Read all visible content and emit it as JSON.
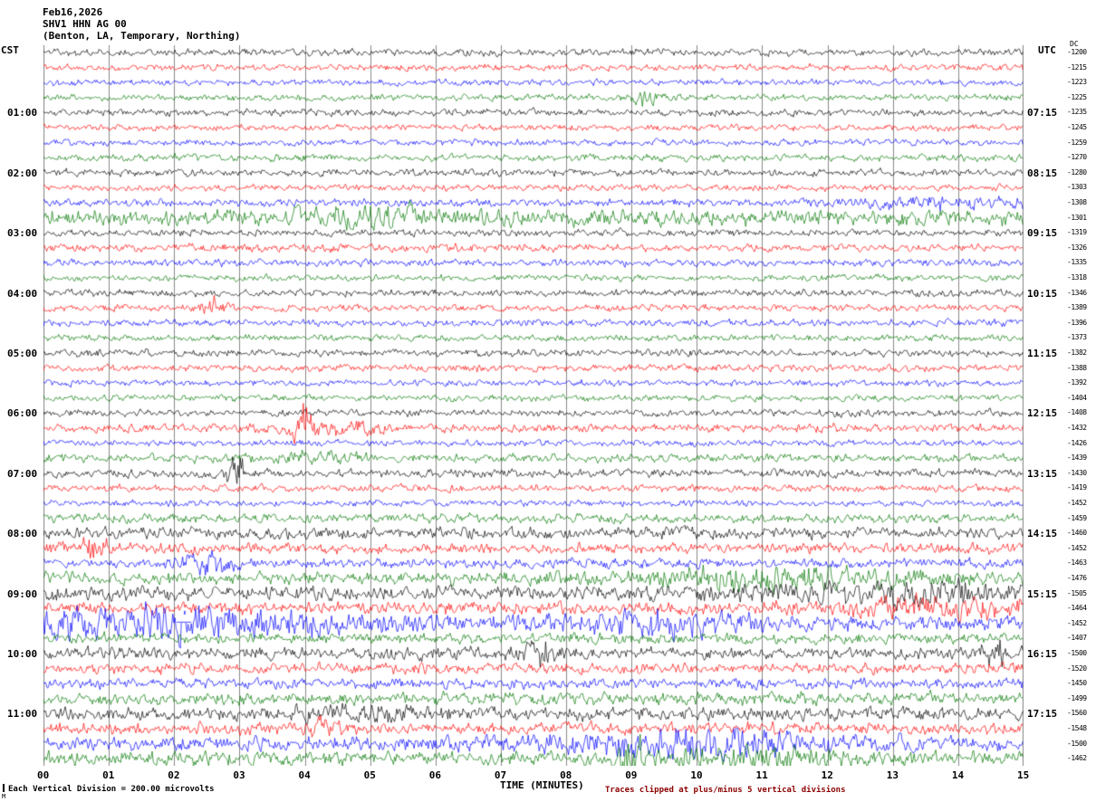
{
  "header": {
    "date": "Feb16,2026",
    "station": "SHV1 HHN AG 00",
    "location": "(Benton, LA, Temporary, Northing)"
  },
  "footer": {
    "scale_note": "Each Vertical Division =  200.00 microvolts",
    "clip_note": "Traces clipped at plus/minus 5 vertical divisions",
    "corner_mark": "M"
  },
  "chart_data": {
    "type": "line",
    "chart_kind": "helicorder-seismogram",
    "title": "SHV1 HHN AG 00",
    "date": "Feb16,2026",
    "location": "(Benton, LA, Temporary, Northing)",
    "xlabel": "TIME (MINUTES)",
    "x_ticks": [
      "00",
      "01",
      "02",
      "03",
      "04",
      "05",
      "06",
      "07",
      "08",
      "09",
      "10",
      "11",
      "12",
      "13",
      "14",
      "15"
    ],
    "x_range_minutes": [
      0,
      15
    ],
    "left_axis_label": "CST",
    "right_axis_label": "UTC",
    "dc_column_label": "DC",
    "left_time_labels": [
      "01:00",
      "02:00",
      "03:00",
      "04:00",
      "05:00",
      "06:00",
      "07:00",
      "08:00",
      "09:00",
      "10:00",
      "11:00"
    ],
    "right_time_labels": [
      "07:15",
      "08:15",
      "09:15",
      "10:15",
      "11:15",
      "12:15",
      "13:15",
      "14:15",
      "15:15",
      "16:15",
      "17:15"
    ],
    "rows": 48,
    "traces_per_hour_group": 4,
    "minutes_per_row": 15,
    "trace_colors": [
      "#000000",
      "#ff0000",
      "#0000ff",
      "#007700"
    ],
    "grid": {
      "vertical_lines_every_minute": true,
      "color": "#8a8a8a"
    },
    "dc_values": [
      -1200,
      -1215,
      -1223,
      -1225,
      -1235,
      -1245,
      -1259,
      -1270,
      -1280,
      -1303,
      -1308,
      -1301,
      -1319,
      -1326,
      -1335,
      -1318,
      -1346,
      -1389,
      -1396,
      -1373,
      -1382,
      -1388,
      -1392,
      -1404,
      -1408,
      -1432,
      -1426,
      -1439,
      -1430,
      -1419,
      -1452,
      -1459,
      -1460,
      -1452,
      -1463,
      -1476,
      -1505,
      -1464,
      -1452,
      -1407,
      -1500,
      -1520,
      -1450,
      -1499,
      -1560,
      -1548,
      -1500,
      -1462
    ],
    "row_relative_amplitudes": [
      1.0,
      0.9,
      0.9,
      0.9,
      1.0,
      0.9,
      0.9,
      1.0,
      1.0,
      0.9,
      1.1,
      2.2,
      1.0,
      1.1,
      1.0,
      0.9,
      1.0,
      1.0,
      1.0,
      0.9,
      1.0,
      1.0,
      0.9,
      0.9,
      1.0,
      1.2,
      0.9,
      1.2,
      1.2,
      1.0,
      0.9,
      1.3,
      1.6,
      1.5,
      1.4,
      1.8,
      2.0,
      1.8,
      2.2,
      1.5,
      1.7,
      1.5,
      1.5,
      1.7,
      1.8,
      1.7,
      2.0,
      1.9
    ],
    "events": [
      {
        "row": 3,
        "minute": 9.2,
        "amp": 2.5,
        "width": 0.15
      },
      {
        "row": 10,
        "minute": 13.8,
        "amp": 1.0,
        "width": 0.9
      },
      {
        "row": 11,
        "minute": 5.0,
        "amp": 0.8,
        "width": 0.8
      },
      {
        "row": 17,
        "minute": 2.6,
        "amp": 2.5,
        "width": 0.12
      },
      {
        "row": 25,
        "minute": 3.95,
        "amp": 5.0,
        "width": 0.1
      },
      {
        "row": 25,
        "minute": 4.4,
        "amp": 1.2,
        "width": 0.5
      },
      {
        "row": 27,
        "minute": 4.1,
        "amp": 1.0,
        "width": 0.5
      },
      {
        "row": 28,
        "minute": 2.95,
        "amp": 3.5,
        "width": 0.12
      },
      {
        "row": 33,
        "minute": 0.8,
        "amp": 2.2,
        "width": 0.12
      },
      {
        "row": 34,
        "minute": 2.5,
        "amp": 1.5,
        "width": 0.3
      },
      {
        "row": 35,
        "minute": 11.3,
        "amp": 1.3,
        "width": 1.5
      },
      {
        "row": 36,
        "minute": 13.0,
        "amp": 1.0,
        "width": 1.5
      },
      {
        "row": 37,
        "minute": 13.8,
        "amp": 1.1,
        "width": 1.2
      },
      {
        "row": 38,
        "minute": 2.0,
        "amp": 1.6,
        "width": 1.8
      },
      {
        "row": 38,
        "minute": 9.5,
        "amp": 0.9,
        "width": 1.0
      },
      {
        "row": 38,
        "minute": 2.15,
        "amp": 0,
        "width": 0.1,
        "type": "gap"
      },
      {
        "row": 40,
        "minute": 7.6,
        "amp": 1.4,
        "width": 0.25
      },
      {
        "row": 40,
        "minute": 14.6,
        "amp": 1.8,
        "width": 0.15
      },
      {
        "row": 44,
        "minute": 5.0,
        "amp": 0.8,
        "width": 0.8
      },
      {
        "row": 45,
        "minute": 4.3,
        "amp": 1.4,
        "width": 0.2
      },
      {
        "row": 46,
        "minute": 10.0,
        "amp": 1.4,
        "width": 1.5
      },
      {
        "row": 47,
        "minute": 9.0,
        "amp": 2.8,
        "width": 0.15
      },
      {
        "row": 47,
        "minute": 11.0,
        "amp": 0.9,
        "width": 1.2
      }
    ]
  }
}
